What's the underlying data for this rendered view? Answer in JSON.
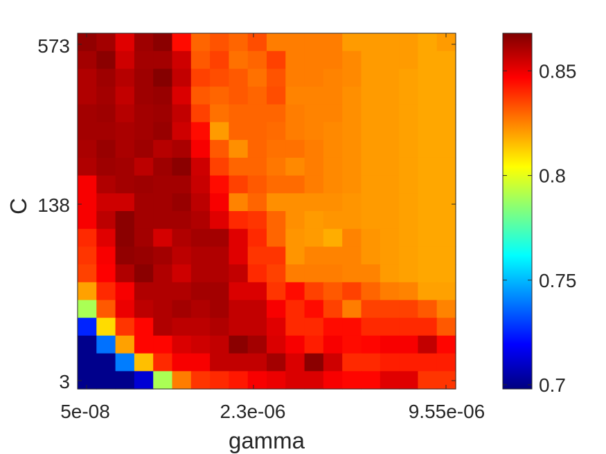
{
  "chart_data": {
    "type": "heatmap",
    "title": "",
    "xlabel": "gamma",
    "ylabel": "C",
    "x_tick_labels": [
      "5e-08",
      "2.3e-06",
      "9.55e-06"
    ],
    "y_tick_labels": [
      "573",
      "138",
      "3"
    ],
    "colormap": "jet",
    "colorbar": {
      "range": [
        0.698,
        0.868
      ],
      "tick_labels": [
        "0.7",
        "0.75",
        "0.8",
        "0.85"
      ],
      "tick_values": [
        0.7,
        0.75,
        0.8,
        0.85
      ]
    },
    "grid": false,
    "n_cols": 20,
    "n_rows": 20,
    "values": [
      [
        0.865,
        0.862,
        0.852,
        0.863,
        0.866,
        0.845,
        0.83,
        0.833,
        0.83,
        0.834,
        0.826,
        0.826,
        0.826,
        0.826,
        0.821,
        0.821,
        0.821,
        0.821,
        0.819,
        0.821
      ],
      [
        0.862,
        0.866,
        0.855,
        0.862,
        0.862,
        0.855,
        0.832,
        0.836,
        0.828,
        0.83,
        0.836,
        0.826,
        0.826,
        0.826,
        0.824,
        0.821,
        0.821,
        0.821,
        0.819,
        0.819
      ],
      [
        0.86,
        0.863,
        0.859,
        0.863,
        0.867,
        0.857,
        0.836,
        0.834,
        0.832,
        0.828,
        0.833,
        0.826,
        0.826,
        0.825,
        0.824,
        0.821,
        0.821,
        0.82,
        0.819,
        0.819
      ],
      [
        0.86,
        0.862,
        0.857,
        0.863,
        0.864,
        0.853,
        0.832,
        0.83,
        0.832,
        0.83,
        0.834,
        0.825,
        0.825,
        0.825,
        0.823,
        0.821,
        0.821,
        0.82,
        0.819,
        0.819
      ],
      [
        0.862,
        0.863,
        0.859,
        0.862,
        0.863,
        0.857,
        0.836,
        0.828,
        0.83,
        0.83,
        0.83,
        0.826,
        0.825,
        0.825,
        0.823,
        0.821,
        0.821,
        0.82,
        0.819,
        0.819
      ],
      [
        0.862,
        0.862,
        0.861,
        0.862,
        0.864,
        0.855,
        0.845,
        0.821,
        0.83,
        0.83,
        0.829,
        0.826,
        0.825,
        0.824,
        0.823,
        0.821,
        0.821,
        0.82,
        0.819,
        0.819
      ],
      [
        0.861,
        0.864,
        0.861,
        0.863,
        0.859,
        0.861,
        0.848,
        0.832,
        0.823,
        0.83,
        0.828,
        0.828,
        0.826,
        0.824,
        0.823,
        0.821,
        0.821,
        0.82,
        0.819,
        0.819
      ],
      [
        0.86,
        0.863,
        0.862,
        0.858,
        0.863,
        0.866,
        0.855,
        0.836,
        0.83,
        0.83,
        0.827,
        0.824,
        0.826,
        0.824,
        0.823,
        0.821,
        0.821,
        0.82,
        0.819,
        0.819
      ],
      [
        0.848,
        0.86,
        0.862,
        0.863,
        0.862,
        0.862,
        0.856,
        0.845,
        0.836,
        0.832,
        0.829,
        0.829,
        0.826,
        0.824,
        0.823,
        0.821,
        0.821,
        0.82,
        0.819,
        0.819
      ],
      [
        0.848,
        0.855,
        0.855,
        0.862,
        0.862,
        0.864,
        0.858,
        0.848,
        0.825,
        0.83,
        0.823,
        0.823,
        0.823,
        0.823,
        0.822,
        0.821,
        0.821,
        0.82,
        0.819,
        0.819
      ],
      [
        0.848,
        0.858,
        0.866,
        0.862,
        0.862,
        0.862,
        0.86,
        0.852,
        0.84,
        0.838,
        0.83,
        0.823,
        0.821,
        0.822,
        0.822,
        0.821,
        0.821,
        0.82,
        0.819,
        0.819
      ],
      [
        0.84,
        0.852,
        0.866,
        0.862,
        0.854,
        0.86,
        0.862,
        0.862,
        0.852,
        0.84,
        0.83,
        0.822,
        0.821,
        0.818,
        0.825,
        0.822,
        0.821,
        0.82,
        0.819,
        0.819
      ],
      [
        0.838,
        0.848,
        0.865,
        0.864,
        0.862,
        0.858,
        0.86,
        0.86,
        0.852,
        0.838,
        0.838,
        0.822,
        0.825,
        0.825,
        0.825,
        0.822,
        0.821,
        0.82,
        0.819,
        0.819
      ],
      [
        0.836,
        0.847,
        0.86,
        0.866,
        0.86,
        0.855,
        0.86,
        0.86,
        0.857,
        0.84,
        0.836,
        0.826,
        0.826,
        0.826,
        0.825,
        0.825,
        0.821,
        0.82,
        0.819,
        0.819
      ],
      [
        0.82,
        0.84,
        0.848,
        0.86,
        0.86,
        0.86,
        0.862,
        0.862,
        0.853,
        0.853,
        0.838,
        0.845,
        0.836,
        0.832,
        0.836,
        0.83,
        0.826,
        0.825,
        0.82,
        0.82
      ],
      [
        0.79,
        0.832,
        0.85,
        0.858,
        0.86,
        0.862,
        0.86,
        0.862,
        0.857,
        0.857,
        0.848,
        0.84,
        0.845,
        0.836,
        0.826,
        0.836,
        0.836,
        0.836,
        0.832,
        0.825
      ],
      [
        0.725,
        0.81,
        0.838,
        0.846,
        0.86,
        0.858,
        0.858,
        0.86,
        0.857,
        0.857,
        0.852,
        0.84,
        0.84,
        0.845,
        0.845,
        0.84,
        0.84,
        0.84,
        0.84,
        0.832
      ],
      [
        0.7,
        0.738,
        0.82,
        0.846,
        0.846,
        0.853,
        0.855,
        0.857,
        0.866,
        0.862,
        0.853,
        0.848,
        0.842,
        0.848,
        0.845,
        0.846,
        0.848,
        0.848,
        0.857,
        0.846
      ],
      [
        0.7,
        0.7,
        0.74,
        0.815,
        0.84,
        0.848,
        0.848,
        0.857,
        0.857,
        0.857,
        0.862,
        0.853,
        0.866,
        0.855,
        0.84,
        0.84,
        0.842,
        0.842,
        0.842,
        0.842
      ],
      [
        0.7,
        0.7,
        0.7,
        0.712,
        0.79,
        0.826,
        0.838,
        0.84,
        0.843,
        0.848,
        0.85,
        0.853,
        0.853,
        0.848,
        0.846,
        0.846,
        0.852,
        0.852,
        0.838,
        0.838
      ]
    ]
  }
}
